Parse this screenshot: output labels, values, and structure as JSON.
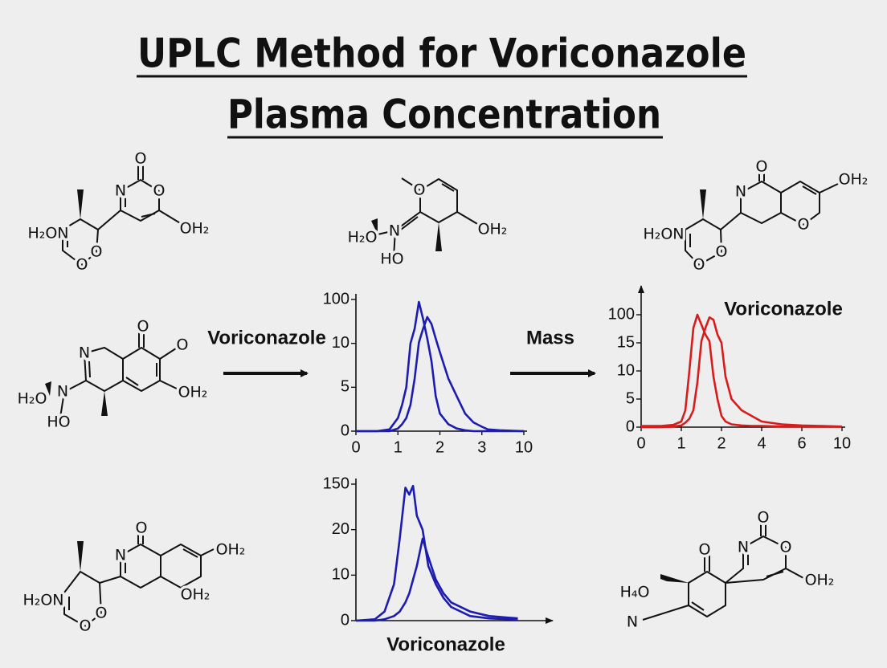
{
  "title": [
    "UPLC Method for Voriconazole",
    "Plasma Concentration"
  ],
  "arrows": [
    {
      "label": "Voriconazole"
    },
    {
      "label": "Mass"
    }
  ],
  "molecules": [
    {
      "labels": [
        "H₂ON",
        "O",
        "O",
        "N",
        "O",
        "O",
        "OH₂"
      ]
    },
    {
      "labels": [
        "O",
        "OH₂",
        "N",
        "H₂O",
        "HO"
      ]
    },
    {
      "labels": [
        "H₂ON",
        "O",
        "O",
        "N",
        "O",
        "O",
        "OH₂"
      ]
    },
    {
      "labels": [
        "N",
        "O",
        "O",
        "OH₂",
        "N",
        "H₂O",
        "HO"
      ]
    },
    {
      "labels": [
        "H₂ON",
        "O",
        "O",
        "N",
        "O",
        "OH₂",
        "OH₂"
      ]
    },
    {
      "labels": [
        "O",
        "H₄O",
        "N",
        "N",
        "O",
        "O",
        "OH₂"
      ]
    }
  ],
  "chart_data": [
    {
      "type": "line",
      "xscale": "piecewise",
      "yscale": "piecewise",
      "x": [
        0,
        0.5,
        0.8,
        1,
        1.1,
        1.2,
        1.3,
        1.4,
        1.5,
        1.6,
        1.7,
        1.8,
        1.9,
        2,
        2.2,
        2.4,
        2.6,
        2.8,
        3,
        4,
        6,
        10
      ],
      "series": [
        {
          "color": "#1c1cb0",
          "values": [
            0,
            0,
            0.2,
            1.5,
            3,
            5,
            10,
            40,
            95,
            60,
            20,
            8,
            4,
            2,
            0.8,
            0.3,
            0.1,
            0,
            0,
            0,
            0,
            0
          ]
        },
        {
          "color": "#1c1cb0",
          "values": [
            0,
            0,
            0,
            0.3,
            0.8,
            1.5,
            3,
            6,
            12,
            40,
            64,
            50,
            20,
            9,
            6,
            4,
            2,
            1,
            0.5,
            0.2,
            0.1,
            0
          ]
        }
      ],
      "xlim": [
        0,
        10
      ],
      "xticks": [
        0,
        1,
        2,
        3,
        10
      ],
      "ylim": [
        0,
        100
      ],
      "yticks": [
        0,
        5,
        10,
        100
      ]
    },
    {
      "type": "line",
      "xscale": "piecewise",
      "yscale": "piecewise",
      "annotation": "Voriconazole",
      "x": [
        0,
        0.5,
        0.8,
        1,
        1.1,
        1.2,
        1.3,
        1.4,
        1.5,
        1.6,
        1.7,
        1.8,
        1.9,
        2,
        2.2,
        2.5,
        3,
        3.5,
        4,
        5,
        6,
        8,
        10
      ],
      "series": [
        {
          "color": "#d81c1c",
          "values": [
            0.2,
            0.2,
            0.4,
            1,
            3,
            10,
            60,
            100,
            70,
            40,
            20,
            9,
            5,
            2,
            1,
            0.5,
            0.3,
            0.2,
            0.2,
            0.1,
            0.1,
            0.1,
            0.1
          ]
        },
        {
          "color": "#d81c1c",
          "values": [
            0,
            0,
            0.1,
            0.3,
            0.8,
            1.5,
            3,
            8,
            20,
            60,
            92,
            85,
            40,
            15,
            9,
            5,
            3,
            2,
            1,
            0.5,
            0.3,
            0.2,
            0.1
          ]
        }
      ],
      "xlim": [
        0,
        10
      ],
      "xticks": [
        0,
        1,
        2,
        4,
        6,
        10
      ],
      "ylim": [
        0,
        100
      ],
      "yticks": [
        0,
        5,
        10,
        15,
        100
      ]
    },
    {
      "type": "line",
      "xscale": "linear",
      "yscale": "piecewise",
      "xlabel": "Voriconazole",
      "x": [
        0,
        1,
        1.5,
        2,
        2.3,
        2.6,
        2.8,
        3,
        3.2,
        3.5,
        3.8,
        4.2,
        4.6,
        5,
        6,
        7,
        8.5
      ],
      "series": [
        {
          "color": "#1c1cb0",
          "values": [
            0,
            0.3,
            2,
            8,
            18,
            140,
            120,
            145,
            60,
            20,
            12,
            8,
            5,
            3,
            1,
            0.5,
            0.2
          ]
        },
        {
          "color": "#1c1cb0",
          "values": [
            0,
            0,
            0.3,
            1,
            2,
            4,
            6,
            9,
            12,
            18,
            14,
            9,
            6,
            4,
            2,
            1,
            0.5
          ]
        }
      ],
      "xlim": [
        0,
        10
      ],
      "ylim": [
        0,
        150
      ],
      "yticks": [
        0,
        10,
        20,
        150
      ]
    }
  ]
}
